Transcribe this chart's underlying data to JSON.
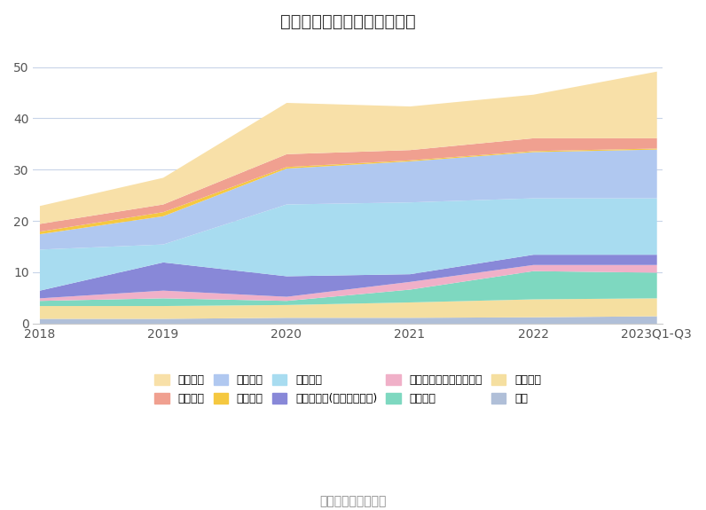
{
  "title": "历年主要负债堆积图（亿元）",
  "x_labels": [
    "2018",
    "2019",
    "2020",
    "2021",
    "2022",
    "2023Q1-Q3"
  ],
  "x_values": [
    0,
    1,
    2,
    3,
    4,
    5
  ],
  "series": [
    {
      "name": "其它",
      "color": "#b0bfd8",
      "values": [
        1.0,
        1.0,
        1.2,
        1.2,
        1.3,
        1.5
      ]
    },
    {
      "name": "应付债券",
      "color": "#f5dfa0",
      "values": [
        2.5,
        2.5,
        2.5,
        3.0,
        3.5,
        3.5
      ]
    },
    {
      "name": "长期借款",
      "color": "#7ed8c0",
      "values": [
        1.0,
        1.5,
        0.8,
        2.5,
        5.5,
        5.0
      ]
    },
    {
      "name": "一年内到期的非流动负债",
      "color": "#f0b0c8",
      "values": [
        0.5,
        1.5,
        0.8,
        1.5,
        1.2,
        1.5
      ]
    },
    {
      "name": "其他应付款(含利息和股利)",
      "color": "#8888d8",
      "values": [
        1.5,
        5.5,
        4.0,
        1.5,
        2.0,
        2.0
      ]
    },
    {
      "name": "合同负债",
      "color": "#a8dcf0",
      "values": [
        8.0,
        3.5,
        14.0,
        14.0,
        11.0,
        11.0
      ]
    },
    {
      "name": "应付账款",
      "color": "#b0c8f0",
      "values": [
        3.0,
        5.5,
        7.0,
        8.0,
        9.0,
        9.5
      ]
    },
    {
      "name": "预收款项",
      "color": "#f5c840",
      "values": [
        0.5,
        0.8,
        0.3,
        0.2,
        0.2,
        0.2
      ]
    },
    {
      "name": "应付票据",
      "color": "#f0a090",
      "values": [
        1.5,
        1.5,
        2.5,
        2.0,
        2.5,
        2.0
      ]
    },
    {
      "name": "短期借款",
      "color": "#f8e0a8",
      "values": [
        3.5,
        5.2,
        10.0,
        8.5,
        8.5,
        13.0
      ]
    }
  ],
  "ylim": [
    0,
    55
  ],
  "yticks": [
    0,
    10,
    20,
    30,
    40,
    50
  ],
  "source_text": "数据来源：恒生聚源",
  "bg_color": "#ffffff",
  "grid_color": "#c8d4e8",
  "legend_order": [
    9,
    8,
    6,
    7,
    5,
    4,
    3,
    2,
    1,
    0
  ]
}
